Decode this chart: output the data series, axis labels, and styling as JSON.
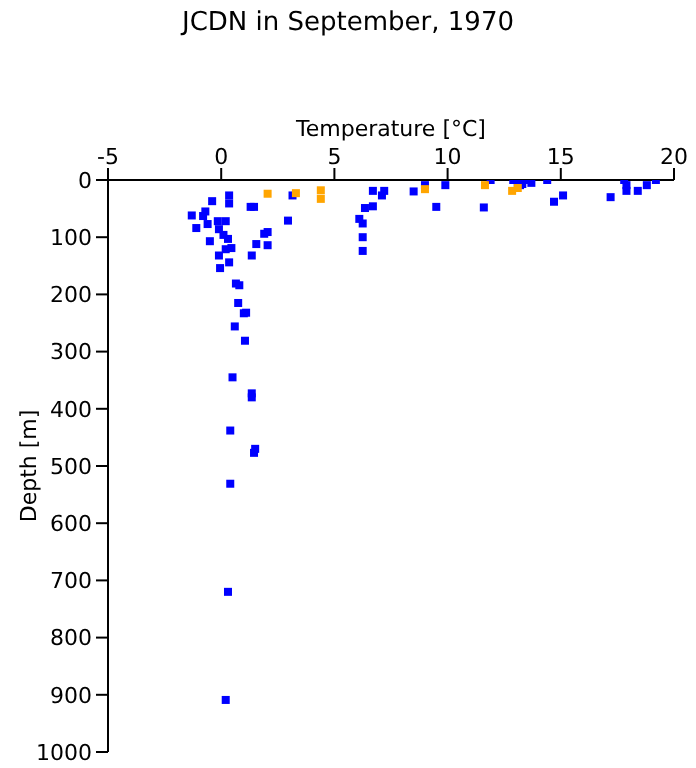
{
  "chart_data": {
    "type": "scatter",
    "title": "JCDN in September, 1970",
    "xlabel": "Temperature [°C]",
    "ylabel": "Depth [m]",
    "xlim": [
      -5,
      20
    ],
    "xticks": [
      -5,
      0,
      5,
      10,
      15,
      20
    ],
    "ylim": [
      1000,
      0
    ],
    "yticks": [
      0,
      100,
      200,
      300,
      400,
      500,
      600,
      700,
      800,
      900,
      1000
    ],
    "marker": "square",
    "series": [
      {
        "color": "#0000ff",
        "x": [
          0.35,
          0.35,
          -0.4,
          -0.7,
          -1.3,
          -0.8,
          -1.1,
          -0.6,
          -0.15,
          0.2,
          -0.1,
          0.1,
          0.3,
          -0.5,
          0.45,
          0.2,
          -0.1,
          0.35,
          -0.05,
          1.3,
          1.45,
          1.35,
          1.55,
          2.05,
          1.9,
          2.05,
          2.95,
          3.15,
          0.65,
          0.8,
          0.75,
          1.0,
          1.1,
          0.6,
          1.05,
          6.7,
          7.2,
          7.1,
          6.7,
          6.35,
          6.1,
          6.25,
          6.25,
          6.25,
          0.5,
          1.35,
          1.35,
          0.4,
          1.5,
          1.45,
          0.4,
          0.3,
          0.2,
          8.5,
          9.0,
          9.5,
          9.9,
          11.6,
          11.9,
          12.9,
          13.1,
          13.3,
          13.5,
          13.7,
          13.2,
          14.4,
          14.7,
          15.1,
          17.2,
          17.8,
          17.9,
          17.9,
          18.4,
          18.8,
          19.2
        ],
        "values": [
          27,
          41,
          37,
          55,
          62,
          63,
          84,
          77,
          72,
          72,
          86,
          96,
          103,
          107,
          119,
          121,
          132,
          144,
          154,
          47,
          47,
          132,
          112,
          91,
          94,
          114,
          71,
          27,
          181,
          184,
          215,
          233,
          232,
          256,
          281,
          19,
          19,
          27,
          46,
          49,
          68,
          76,
          100,
          124,
          345,
          373,
          380,
          438,
          470,
          477,
          531,
          720,
          909,
          20,
          9,
          47,
          9,
          48,
          0,
          0,
          5,
          7,
          0,
          5,
          9,
          0,
          38,
          27,
          30,
          0,
          9,
          19,
          19,
          9,
          0
        ]
      },
      {
        "color": "#ffa500",
        "x": [
          2.05,
          3.3,
          4.4,
          4.4,
          11.65,
          9.0,
          12.85,
          13.1
        ],
        "values": [
          24,
          23,
          18,
          33,
          9,
          16,
          19,
          14
        ]
      }
    ]
  }
}
